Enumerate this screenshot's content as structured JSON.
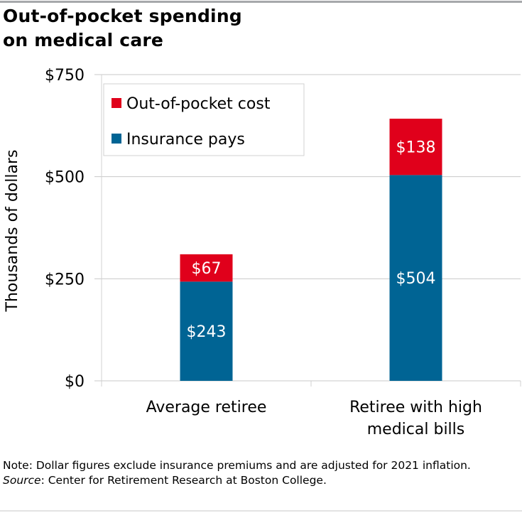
{
  "title": "Out-of-pocket spending on medical care",
  "title_lines": [
    "Out-of-pocket spending",
    "on medical care"
  ],
  "chart_data": {
    "type": "bar",
    "stacked": true,
    "categories": [
      "Average retiree",
      "Retiree with high medical bills"
    ],
    "category_lines": [
      [
        "Average retiree"
      ],
      [
        "Retiree with high",
        "medical bills"
      ]
    ],
    "series": [
      {
        "name": "Insurance pays",
        "values": [
          243,
          504
        ],
        "labels": [
          "$243",
          "$504"
        ],
        "color": "#006494"
      },
      {
        "name": "Out-of-pocket cost",
        "values": [
          67,
          138
        ],
        "labels": [
          "$67",
          "$138"
        ],
        "color": "#e0001b"
      }
    ],
    "ylabel": "Thousands of dollars",
    "ylim": [
      0,
      750
    ],
    "yticks": [
      0,
      250,
      500,
      750
    ],
    "ytick_labels": [
      "$0",
      "$250",
      "$500",
      "$750"
    ],
    "grid": true,
    "legend": [
      "Out-of-pocket cost",
      "Insurance pays"
    ],
    "legend_placement": "top-left"
  },
  "note": {
    "prefix": "Note: Dollar figures exclude insurance premiums and are adjusted for 2021 inflation.",
    "source_label": "Source",
    "source_text": ": Center for Retirement Research at Boston College."
  }
}
